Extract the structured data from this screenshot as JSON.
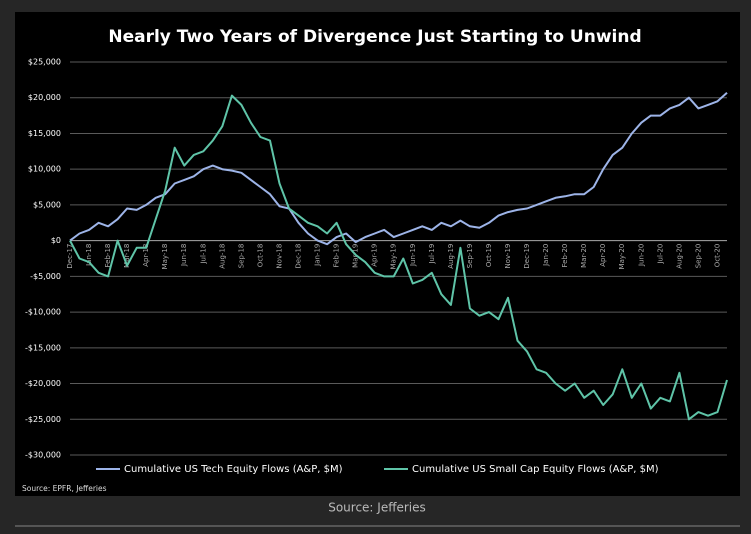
{
  "chart_data": {
    "type": "line",
    "title": "Nearly Two Years of Divergence Just Starting to Unwind",
    "source": "Source: EPFR, Jefferies",
    "categories": [
      "Dec-17",
      null,
      "Jan-18",
      null,
      "Feb-18",
      null,
      "Mar-18",
      null,
      "Apr-18",
      null,
      "May-18",
      null,
      "Jun-18",
      null,
      "Jul-18",
      null,
      "Aug-18",
      null,
      "Sep-18",
      null,
      "Oct-18",
      null,
      "Nov-18",
      null,
      "Dec-18",
      null,
      "Jan-19",
      null,
      "Feb-19",
      null,
      "Mar-19",
      null,
      "Apr-19",
      null,
      "May-19",
      null,
      "Jun-19",
      null,
      "Jul-19",
      null,
      "Aug-19",
      null,
      "Sep-19",
      null,
      "Oct-19",
      null,
      "Nov-19",
      null,
      "Dec-19",
      null,
      "Jan-20",
      null,
      "Feb-20",
      null,
      "Mar-20",
      null,
      "Apr-20",
      null,
      "May-20",
      null,
      "Jun-20",
      null,
      "Jul-20",
      null,
      "Aug-20",
      null,
      "Sep-20",
      null,
      "Oct-20",
      null
    ],
    "series": [
      {
        "name": "Cumulative US Tech Equity Flows (A&P, $M)",
        "color": "#9db4e8",
        "values": [
          0,
          1000,
          1500,
          2500,
          2000,
          3000,
          4500,
          4300,
          5000,
          6000,
          6500,
          8000,
          8500,
          9000,
          10000,
          10500,
          10000,
          9800,
          9500,
          8500,
          7500,
          6500,
          4800,
          4500,
          2500,
          1000,
          0,
          -500,
          500,
          1000,
          -200,
          500,
          1000,
          1500,
          500,
          1000,
          1500,
          2000,
          1500,
          2500,
          2000,
          2800,
          2000,
          1800,
          2500,
          3500,
          4000,
          4300,
          4500,
          5000,
          5500,
          6000,
          6200,
          6500,
          6500,
          7500,
          10000,
          12000,
          13000,
          15000,
          16500,
          17500,
          17500,
          18500,
          19000,
          20000,
          18500,
          19000,
          19500,
          20700
        ]
      },
      {
        "name": "Cumulative US Small Cap Equity Flows (A&P, $M)",
        "color": "#5fc4a8",
        "values": [
          0,
          -2500,
          -3000,
          -4500,
          -5000,
          0,
          -3500,
          -1000,
          -1000,
          3000,
          7000,
          13000,
          10500,
          12000,
          12500,
          14000,
          16000,
          20300,
          19000,
          16500,
          14500,
          14000,
          8000,
          4500,
          3500,
          2500,
          2000,
          1000,
          2500,
          -500,
          -2000,
          -3000,
          -4500,
          -5000,
          -5000,
          -2500,
          -6000,
          -5500,
          -4500,
          -7500,
          -9000,
          -1000,
          -9500,
          -10500,
          -10000,
          -11000,
          -8000,
          -14000,
          -15500,
          -18000,
          -18500,
          -20000,
          -21000,
          -20000,
          -22000,
          -21000,
          -23000,
          -21500,
          -18000,
          -22000,
          -20000,
          -23500,
          -22000,
          -22500,
          -18500,
          -25000,
          -24000,
          -24500,
          -24000,
          -19500
        ]
      }
    ],
    "ylim": [
      -30000,
      25000
    ],
    "yticks": [
      {
        "value": -30000,
        "label": "-$30,000"
      },
      {
        "value": -25000,
        "label": "-$25,000"
      },
      {
        "value": -20000,
        "label": "-$20,000"
      },
      {
        "value": -15000,
        "label": "-$15,000"
      },
      {
        "value": -10000,
        "label": "-$10,000"
      },
      {
        "value": -5000,
        "label": "-$5,000"
      },
      {
        "value": 0,
        "label": "$0"
      },
      {
        "value": 5000,
        "label": "$5,000"
      },
      {
        "value": 10000,
        "label": "$10,000"
      },
      {
        "value": 15000,
        "label": "$15,000"
      },
      {
        "value": 20000,
        "label": "$20,000"
      },
      {
        "value": 25000,
        "label": "$25,000"
      }
    ],
    "grid": true,
    "legend": "bottom"
  },
  "caption": "Source: Jefferies"
}
